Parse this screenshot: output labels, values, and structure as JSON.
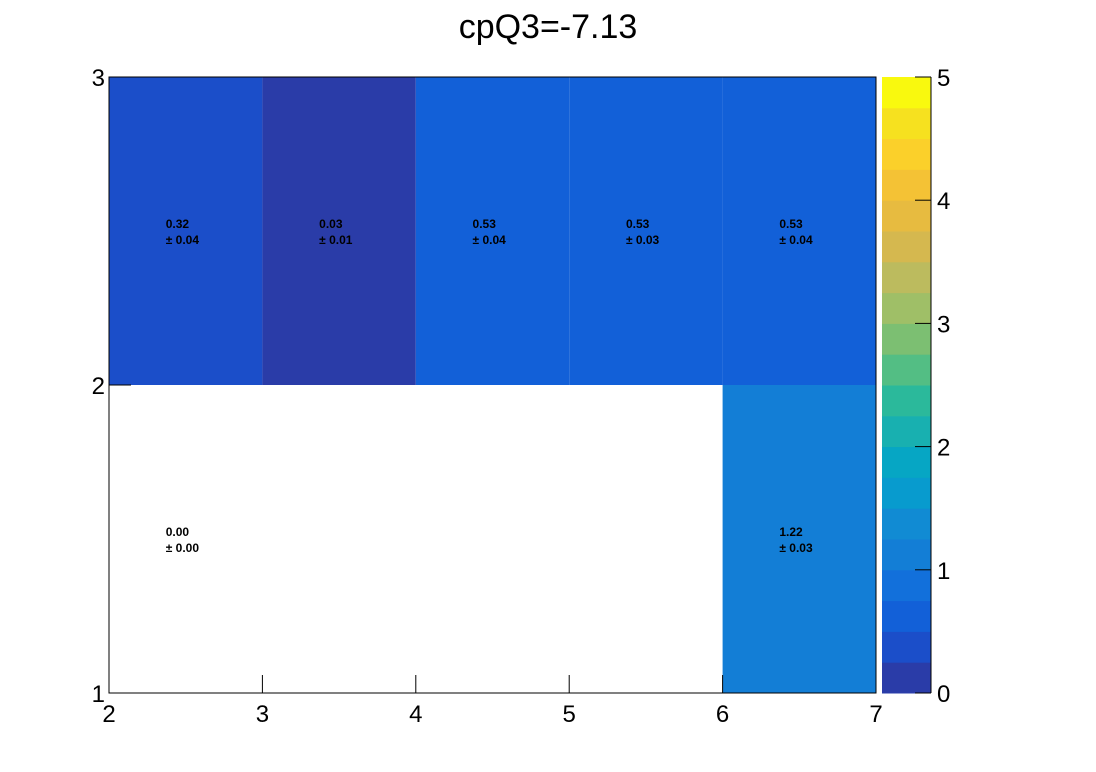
{
  "chart_data": {
    "type": "heatmap",
    "title": "cpQ3=-7.13",
    "xlabel": "",
    "ylabel": "",
    "x_edges": [
      2,
      3,
      4,
      5,
      6,
      7
    ],
    "y_edges": [
      1,
      2,
      3
    ],
    "xlim": [
      2,
      7
    ],
    "ylim": [
      1,
      3
    ],
    "zlim": [
      0,
      5
    ],
    "x_ticks": [
      "2",
      "3",
      "4",
      "5",
      "6",
      "7"
    ],
    "y_ticks": [
      "1",
      "2",
      "3"
    ],
    "z_ticks": [
      "0",
      "1",
      "2",
      "3",
      "4",
      "5"
    ],
    "cells": [
      {
        "x": 2,
        "y": 2,
        "value": 0.32,
        "label": "0.32",
        "error": "± 0.04"
      },
      {
        "x": 3,
        "y": 2,
        "value": 0.03,
        "label": "0.03",
        "error": "± 0.01"
      },
      {
        "x": 4,
        "y": 2,
        "value": 0.53,
        "label": "0.53",
        "error": "± 0.04"
      },
      {
        "x": 5,
        "y": 2,
        "value": 0.53,
        "label": "0.53",
        "error": "± 0.03"
      },
      {
        "x": 6,
        "y": 2,
        "value": 0.53,
        "label": "0.53",
        "error": "± 0.04"
      },
      {
        "x": 2,
        "y": 1,
        "value": 0.0,
        "label": "0.00",
        "error": "± 0.00"
      },
      {
        "x": 6,
        "y": 1,
        "value": 1.22,
        "label": "1.22",
        "error": "± 0.03"
      }
    ],
    "palette": [
      "#2a3ca8",
      "#1b4ec9",
      "#1260d8",
      "#1270db",
      "#137ed6",
      "#118bd3",
      "#089bce",
      "#06a6c4",
      "#18b0b0",
      "#2bb99b",
      "#53be84",
      "#7cbf72",
      "#9fbf67",
      "#bcbb5e",
      "#d5b84f",
      "#e7bb40",
      "#f4c235",
      "#fbd02a",
      "#f6e11f",
      "#f9f90e"
    ],
    "grid": false,
    "legend": "colorbar-right"
  }
}
